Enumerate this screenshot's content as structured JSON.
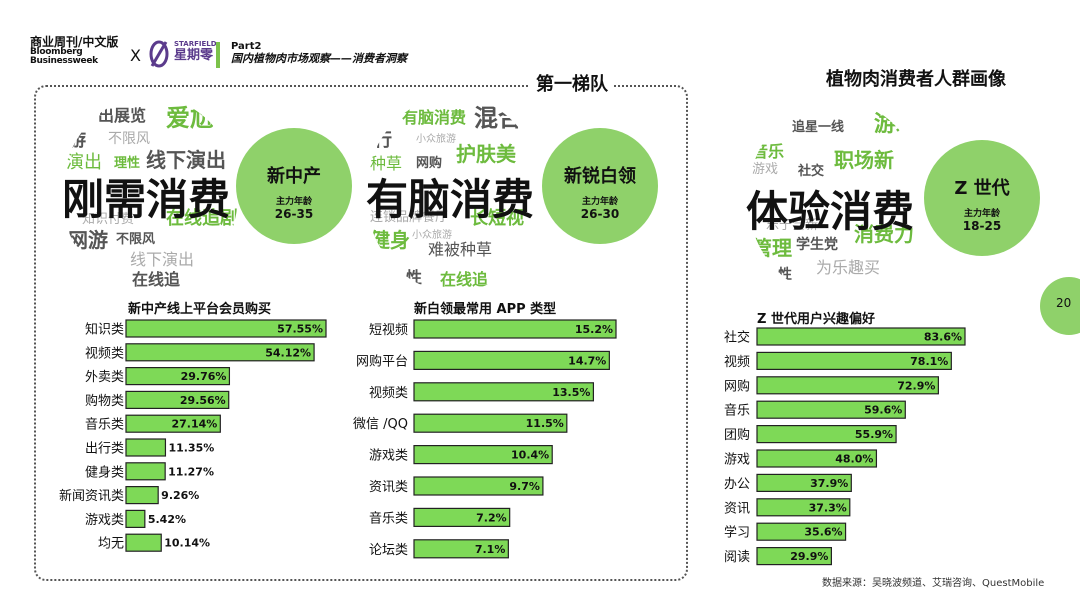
{
  "header": {
    "brand_main": "商业周刊/中文版",
    "brand_sub1": "Bloomberg",
    "brand_sub2": "Businessweek",
    "cross": "X",
    "partner_small": "STARFIELD",
    "partner_big": "星期零",
    "part_label": "Part2",
    "part_title": "国内植物肉市场观察——消费者洞察"
  },
  "tier_label": "第一梯队",
  "persona_title": "植物肉消费者人群画像",
  "page_number": "20",
  "source": "数据来源：吴晓波频道、艾瑞咨询、QuestMobile",
  "colors": {
    "accent": "#8fd16a",
    "bar": "#7ed957",
    "dark_text": "#111111"
  },
  "personas": [
    {
      "headword": "刚需消费",
      "name": "新中产",
      "age_label": "主力年龄",
      "age": "26-35",
      "cloud_words": [
        "出展览",
        "爱尬",
        "游",
        "不限风",
        "演出",
        "理性",
        "线下演出",
        "知识付费",
        "在线追剧",
        "网游",
        "不限风",
        "线下演出",
        "在线追"
      ]
    },
    {
      "headword": "有脑消费",
      "name": "新锐白领",
      "age_label": "主力年龄",
      "age": "26-30",
      "cloud_words": [
        "有脑消费",
        "混合",
        "行",
        "小众旅游",
        "护肤美",
        "种草",
        "网购",
        "连锁品牌餐厅",
        "长短视",
        "健身",
        "小众旅游",
        "难被种草",
        "性",
        "在线追"
      ]
    },
    {
      "headword": "体验消费",
      "name": "Z 世代",
      "age_label": "主力年龄",
      "age": "18-25",
      "cloud_words": [
        "追星一线",
        "游戏",
        "音乐",
        "社交",
        "职场新",
        "游戏",
        "乐于尝新",
        "管理",
        "学生党",
        "消费力",
        "为乐趣买",
        "性"
      ]
    }
  ],
  "chart_data": [
    {
      "type": "bar",
      "title": "新中产线上平台会员购买",
      "categories": [
        "知识类",
        "视频类",
        "外卖类",
        "购物类",
        "音乐类",
        "出行类",
        "健身类",
        "新闻资讯类",
        "游戏类",
        "均无"
      ],
      "values": [
        57.55,
        54.12,
        29.76,
        29.56,
        27.14,
        11.35,
        11.27,
        9.26,
        5.42,
        10.14
      ],
      "labels": [
        "57.55%",
        "54.12%",
        "29.76%",
        "29.56%",
        "27.14%",
        "11.35%",
        "11.27%",
        "9.26%",
        "5.42%",
        "10.14%"
      ],
      "orientation": "horizontal"
    },
    {
      "type": "bar",
      "title": "新白领最常用 APP 类型",
      "categories": [
        "短视频",
        "网购平台",
        "视频类",
        "微信 /QQ",
        "游戏类",
        "资讯类",
        "音乐类",
        "论坛类"
      ],
      "values": [
        15.2,
        14.7,
        13.5,
        11.5,
        10.4,
        9.7,
        7.2,
        7.1
      ],
      "labels": [
        "15.2%",
        "14.7%",
        "13.5%",
        "11.5%",
        "10.4%",
        "9.7%",
        "7.2%",
        "7.1%"
      ],
      "orientation": "horizontal"
    },
    {
      "type": "bar",
      "title": "Z 世代用户兴趣偏好",
      "categories": [
        "社交",
        "视频",
        "网购",
        "音乐",
        "团购",
        "游戏",
        "办公",
        "资讯",
        "学习",
        "阅读"
      ],
      "values": [
        83.6,
        78.1,
        72.9,
        59.6,
        55.9,
        48.0,
        37.9,
        37.3,
        35.6,
        29.9
      ],
      "labels": [
        "83.6%",
        "78.1%",
        "72.9%",
        "59.6%",
        "55.9%",
        "48.0%",
        "37.9%",
        "37.3%",
        "35.6%",
        "29.9%"
      ],
      "orientation": "horizontal"
    }
  ]
}
